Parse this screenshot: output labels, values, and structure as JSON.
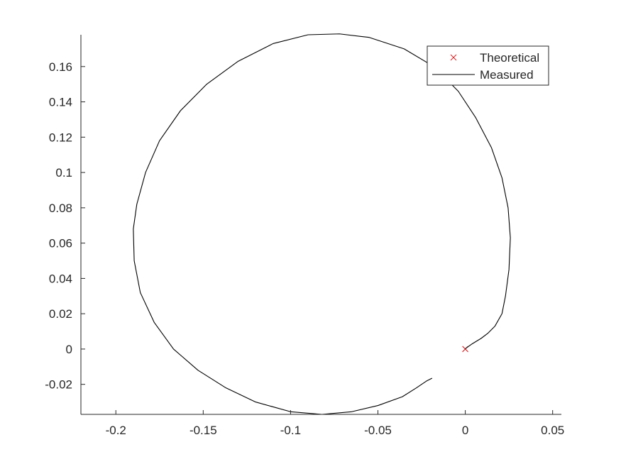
{
  "chart_data": {
    "type": "line",
    "title": "",
    "xlabel": "",
    "ylabel": "",
    "xlim": [
      -0.22,
      0.055
    ],
    "ylim": [
      -0.037,
      0.178
    ],
    "grid": false,
    "legend_position": "top-right",
    "x_ticks": [
      {
        "value": -0.2,
        "label": "-0.2"
      },
      {
        "value": -0.15,
        "label": "-0.15"
      },
      {
        "value": -0.1,
        "label": "-0.1"
      },
      {
        "value": -0.05,
        "label": "-0.05"
      },
      {
        "value": 0,
        "label": "0"
      },
      {
        "value": 0.05,
        "label": "0.05"
      }
    ],
    "y_ticks": [
      {
        "value": -0.02,
        "label": "-0.02"
      },
      {
        "value": 0,
        "label": "0"
      },
      {
        "value": 0.02,
        "label": "0.02"
      },
      {
        "value": 0.04,
        "label": "0.04"
      },
      {
        "value": 0.06,
        "label": "0.06"
      },
      {
        "value": 0.08,
        "label": "0.08"
      },
      {
        "value": 0.1,
        "label": "0.1"
      },
      {
        "value": 0.12,
        "label": "0.12"
      },
      {
        "value": 0.14,
        "label": "0.14"
      },
      {
        "value": 0.16,
        "label": "0.16"
      }
    ],
    "series": [
      {
        "name": "Theoretical",
        "style": "marker",
        "marker": "x",
        "color": "#d62728",
        "points": [
          {
            "x": 0,
            "y": 0
          }
        ]
      },
      {
        "name": "Measured",
        "style": "line",
        "color": "#000000",
        "points": [
          {
            "x": 0,
            "y": 0.0002
          },
          {
            "x": 0.004,
            "y": 0.003
          },
          {
            "x": 0.009,
            "y": 0.006
          },
          {
            "x": 0.013,
            "y": 0.009
          },
          {
            "x": 0.017,
            "y": 0.013
          },
          {
            "x": 0.021,
            "y": 0.02
          },
          {
            "x": 0.023,
            "y": 0.03
          },
          {
            "x": 0.025,
            "y": 0.045
          },
          {
            "x": 0.0258,
            "y": 0.063
          },
          {
            "x": 0.0245,
            "y": 0.08
          },
          {
            "x": 0.021,
            "y": 0.097
          },
          {
            "x": 0.015,
            "y": 0.114
          },
          {
            "x": 0.006,
            "y": 0.131
          },
          {
            "x": -0.004,
            "y": 0.146
          },
          {
            "x": -0.018,
            "y": 0.16
          },
          {
            "x": -0.035,
            "y": 0.17
          },
          {
            "x": -0.055,
            "y": 0.1765
          },
          {
            "x": -0.072,
            "y": 0.1785
          },
          {
            "x": -0.09,
            "y": 0.178
          },
          {
            "x": -0.11,
            "y": 0.173
          },
          {
            "x": -0.13,
            "y": 0.163
          },
          {
            "x": -0.148,
            "y": 0.15
          },
          {
            "x": -0.163,
            "y": 0.135
          },
          {
            "x": -0.175,
            "y": 0.118
          },
          {
            "x": -0.183,
            "y": 0.1
          },
          {
            "x": -0.188,
            "y": 0.082
          },
          {
            "x": -0.19,
            "y": 0.068
          },
          {
            "x": -0.1895,
            "y": 0.05
          },
          {
            "x": -0.186,
            "y": 0.032
          },
          {
            "x": -0.178,
            "y": 0.015
          },
          {
            "x": -0.167,
            "y": 0
          },
          {
            "x": -0.153,
            "y": -0.012
          },
          {
            "x": -0.137,
            "y": -0.022
          },
          {
            "x": -0.12,
            "y": -0.03
          },
          {
            "x": -0.1,
            "y": -0.0355
          },
          {
            "x": -0.082,
            "y": -0.037
          },
          {
            "x": -0.065,
            "y": -0.0355
          },
          {
            "x": -0.05,
            "y": -0.032
          },
          {
            "x": -0.036,
            "y": -0.027
          },
          {
            "x": -0.028,
            "y": -0.022
          },
          {
            "x": -0.022,
            "y": -0.018
          },
          {
            "x": -0.019,
            "y": -0.0165
          }
        ]
      }
    ]
  }
}
